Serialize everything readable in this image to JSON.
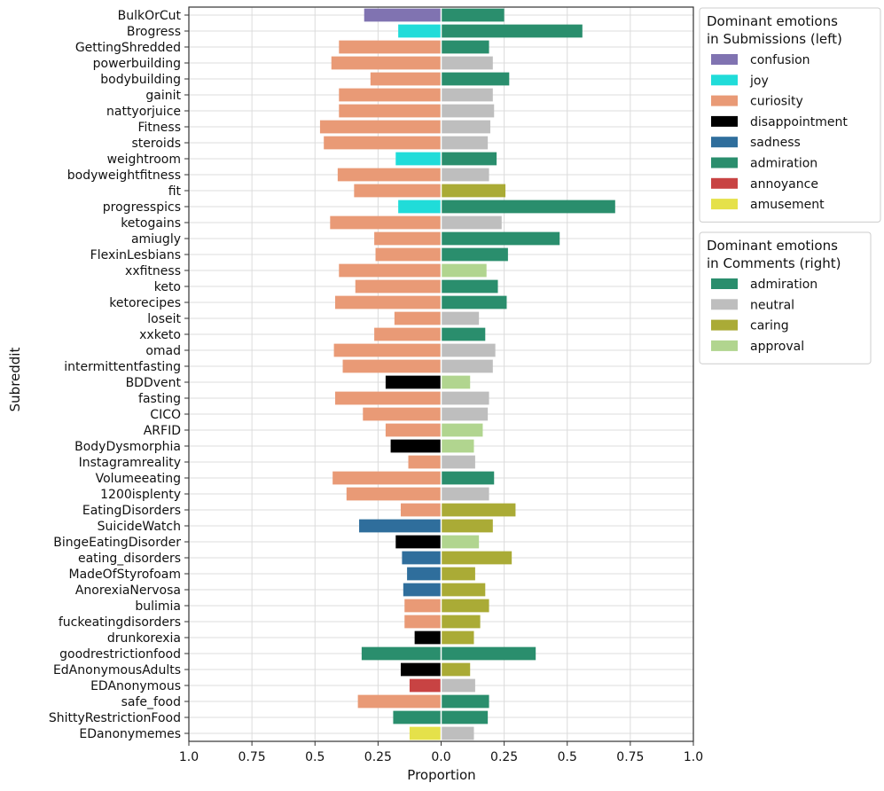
{
  "chart_data": {
    "type": "bar",
    "orientation": "horizontal-diverging",
    "xlabel": "Proportion",
    "ylabel": "Subreddit",
    "xlim": [
      -1.0,
      1.0
    ],
    "xticks": [
      -1.0,
      -0.75,
      -0.5,
      -0.25,
      0.0,
      0.25,
      0.5,
      0.75,
      1.0
    ],
    "xtick_labels": [
      "1.0",
      "0.75",
      "0.5",
      "0.25",
      "0.0",
      "0.25",
      "0.5",
      "0.75",
      "1.0"
    ],
    "grid": true,
    "colors": {
      "confusion": "#8073b1",
      "joy": "#20dcd9",
      "curiosity": "#e99a76",
      "disappointment": "#000000",
      "sadness": "#2f6e9c",
      "admiration": "#2a8e6d",
      "annoyance": "#c84343",
      "amusement": "#e5e14a",
      "neutral": "#bebebe",
      "caring": "#aaab36",
      "approval": "#b1d58f"
    },
    "legend_submissions": {
      "title_line1": "Dominant emotions",
      "title_line2": "in Submissions (left)",
      "entries": [
        "confusion",
        "joy",
        "curiosity",
        "disappointment",
        "sadness",
        "admiration",
        "annoyance",
        "amusement"
      ]
    },
    "legend_comments": {
      "title_line1": "Dominant emotions",
      "title_line2": "in Comments (right)",
      "entries": [
        "admiration",
        "neutral",
        "caring",
        "approval"
      ]
    },
    "rows": [
      {
        "subreddit": "BulkOrCut",
        "left_value": 0.305,
        "left_emotion": "confusion",
        "right_value": 0.25,
        "right_emotion": "admiration"
      },
      {
        "subreddit": "Brogress",
        "left_value": 0.17,
        "left_emotion": "joy",
        "right_value": 0.56,
        "right_emotion": "admiration"
      },
      {
        "subreddit": "GettingShredded",
        "left_value": 0.405,
        "left_emotion": "curiosity",
        "right_value": 0.19,
        "right_emotion": "admiration"
      },
      {
        "subreddit": "powerbuilding",
        "left_value": 0.435,
        "left_emotion": "curiosity",
        "right_value": 0.205,
        "right_emotion": "neutral"
      },
      {
        "subreddit": "bodybuilding",
        "left_value": 0.28,
        "left_emotion": "curiosity",
        "right_value": 0.27,
        "right_emotion": "admiration"
      },
      {
        "subreddit": "gainit",
        "left_value": 0.405,
        "left_emotion": "curiosity",
        "right_value": 0.205,
        "right_emotion": "neutral"
      },
      {
        "subreddit": "nattyorjuice",
        "left_value": 0.405,
        "left_emotion": "curiosity",
        "right_value": 0.21,
        "right_emotion": "neutral"
      },
      {
        "subreddit": "Fitness",
        "left_value": 0.48,
        "left_emotion": "curiosity",
        "right_value": 0.195,
        "right_emotion": "neutral"
      },
      {
        "subreddit": "steroids",
        "left_value": 0.465,
        "left_emotion": "curiosity",
        "right_value": 0.185,
        "right_emotion": "neutral"
      },
      {
        "subreddit": "weightroom",
        "left_value": 0.18,
        "left_emotion": "joy",
        "right_value": 0.22,
        "right_emotion": "admiration"
      },
      {
        "subreddit": "bodyweightfitness",
        "left_value": 0.41,
        "left_emotion": "curiosity",
        "right_value": 0.19,
        "right_emotion": "neutral"
      },
      {
        "subreddit": "fit",
        "left_value": 0.345,
        "left_emotion": "curiosity",
        "right_value": 0.255,
        "right_emotion": "caring"
      },
      {
        "subreddit": "progresspics",
        "left_value": 0.17,
        "left_emotion": "joy",
        "right_value": 0.69,
        "right_emotion": "admiration"
      },
      {
        "subreddit": "ketogains",
        "left_value": 0.44,
        "left_emotion": "curiosity",
        "right_value": 0.24,
        "right_emotion": "neutral"
      },
      {
        "subreddit": "amiugly",
        "left_value": 0.265,
        "left_emotion": "curiosity",
        "right_value": 0.47,
        "right_emotion": "admiration"
      },
      {
        "subreddit": "FlexinLesbians",
        "left_value": 0.26,
        "left_emotion": "curiosity",
        "right_value": 0.265,
        "right_emotion": "admiration"
      },
      {
        "subreddit": "xxfitness",
        "left_value": 0.405,
        "left_emotion": "curiosity",
        "right_value": 0.18,
        "right_emotion": "approval"
      },
      {
        "subreddit": "keto",
        "left_value": 0.34,
        "left_emotion": "curiosity",
        "right_value": 0.225,
        "right_emotion": "admiration"
      },
      {
        "subreddit": "ketorecipes",
        "left_value": 0.42,
        "left_emotion": "curiosity",
        "right_value": 0.26,
        "right_emotion": "admiration"
      },
      {
        "subreddit": "loseit",
        "left_value": 0.185,
        "left_emotion": "curiosity",
        "right_value": 0.15,
        "right_emotion": "neutral"
      },
      {
        "subreddit": "xxketo",
        "left_value": 0.265,
        "left_emotion": "curiosity",
        "right_value": 0.175,
        "right_emotion": "admiration"
      },
      {
        "subreddit": "omad",
        "left_value": 0.425,
        "left_emotion": "curiosity",
        "right_value": 0.215,
        "right_emotion": "neutral"
      },
      {
        "subreddit": "intermittentfasting",
        "left_value": 0.39,
        "left_emotion": "curiosity",
        "right_value": 0.205,
        "right_emotion": "neutral"
      },
      {
        "subreddit": "BDDvent",
        "left_value": 0.22,
        "left_emotion": "disappointment",
        "right_value": 0.115,
        "right_emotion": "approval"
      },
      {
        "subreddit": "fasting",
        "left_value": 0.42,
        "left_emotion": "curiosity",
        "right_value": 0.19,
        "right_emotion": "neutral"
      },
      {
        "subreddit": "CICO",
        "left_value": 0.31,
        "left_emotion": "curiosity",
        "right_value": 0.185,
        "right_emotion": "neutral"
      },
      {
        "subreddit": "ARFID",
        "left_value": 0.22,
        "left_emotion": "curiosity",
        "right_value": 0.165,
        "right_emotion": "approval"
      },
      {
        "subreddit": "BodyDysmorphia",
        "left_value": 0.2,
        "left_emotion": "disappointment",
        "right_value": 0.13,
        "right_emotion": "approval"
      },
      {
        "subreddit": "Instagramreality",
        "left_value": 0.13,
        "left_emotion": "curiosity",
        "right_value": 0.135,
        "right_emotion": "neutral"
      },
      {
        "subreddit": "Volumeeating",
        "left_value": 0.43,
        "left_emotion": "curiosity",
        "right_value": 0.21,
        "right_emotion": "admiration"
      },
      {
        "subreddit": "1200isplenty",
        "left_value": 0.375,
        "left_emotion": "curiosity",
        "right_value": 0.19,
        "right_emotion": "neutral"
      },
      {
        "subreddit": "EatingDisorders",
        "left_value": 0.16,
        "left_emotion": "curiosity",
        "right_value": 0.295,
        "right_emotion": "caring"
      },
      {
        "subreddit": "SuicideWatch",
        "left_value": 0.325,
        "left_emotion": "sadness",
        "right_value": 0.205,
        "right_emotion": "caring"
      },
      {
        "subreddit": "BingeEatingDisorder",
        "left_value": 0.18,
        "left_emotion": "disappointment",
        "right_value": 0.15,
        "right_emotion": "approval"
      },
      {
        "subreddit": "eating_disorders",
        "left_value": 0.155,
        "left_emotion": "sadness",
        "right_value": 0.28,
        "right_emotion": "caring"
      },
      {
        "subreddit": "MadeOfStyrofoam",
        "left_value": 0.135,
        "left_emotion": "sadness",
        "right_value": 0.135,
        "right_emotion": "caring"
      },
      {
        "subreddit": "AnorexiaNervosa",
        "left_value": 0.15,
        "left_emotion": "sadness",
        "right_value": 0.175,
        "right_emotion": "caring"
      },
      {
        "subreddit": "bulimia",
        "left_value": 0.145,
        "left_emotion": "curiosity",
        "right_value": 0.19,
        "right_emotion": "caring"
      },
      {
        "subreddit": "fuckeatingdisorders",
        "left_value": 0.145,
        "left_emotion": "curiosity",
        "right_value": 0.155,
        "right_emotion": "caring"
      },
      {
        "subreddit": "drunkorexia",
        "left_value": 0.105,
        "left_emotion": "disappointment",
        "right_value": 0.13,
        "right_emotion": "caring"
      },
      {
        "subreddit": "goodrestrictionfood",
        "left_value": 0.315,
        "left_emotion": "admiration",
        "right_value": 0.375,
        "right_emotion": "admiration"
      },
      {
        "subreddit": "EdAnonymousAdults",
        "left_value": 0.16,
        "left_emotion": "disappointment",
        "right_value": 0.115,
        "right_emotion": "caring"
      },
      {
        "subreddit": "EDAnonymous",
        "left_value": 0.125,
        "left_emotion": "annoyance",
        "right_value": 0.135,
        "right_emotion": "neutral"
      },
      {
        "subreddit": "safe_food",
        "left_value": 0.33,
        "left_emotion": "curiosity",
        "right_value": 0.19,
        "right_emotion": "admiration"
      },
      {
        "subreddit": "ShittyRestrictionFood",
        "left_value": 0.19,
        "left_emotion": "admiration",
        "right_value": 0.185,
        "right_emotion": "admiration"
      },
      {
        "subreddit": "EDanonymemes",
        "left_value": 0.125,
        "left_emotion": "amusement",
        "right_value": 0.13,
        "right_emotion": "neutral"
      }
    ]
  }
}
